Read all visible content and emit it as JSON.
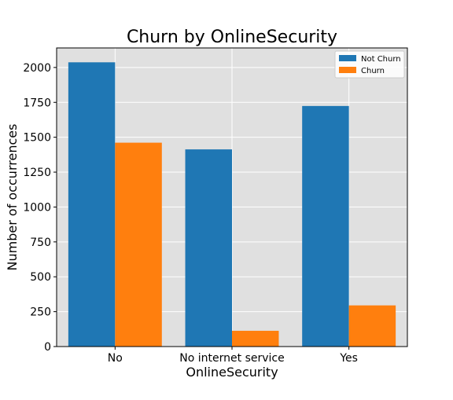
{
  "chart_data": {
    "type": "bar",
    "title": "Churn by OnlineSecurity",
    "xlabel": "OnlineSecurity",
    "ylabel": "Number of occurrences",
    "categories": [
      "No",
      "No internet service",
      "Yes"
    ],
    "series": [
      {
        "name": "Not Churn",
        "values": [
          2037,
          1413,
          1724
        ],
        "color": "#1f77b4"
      },
      {
        "name": "Churn",
        "values": [
          1461,
          113,
          295
        ],
        "color": "#ff7f0e"
      }
    ],
    "ylim": [
      0,
      2140
    ],
    "yticks": [
      0,
      250,
      500,
      750,
      1000,
      1250,
      1500,
      1750,
      2000
    ],
    "grid": true,
    "legend_position": "top-right",
    "plot_background": "#e0e0e0"
  }
}
